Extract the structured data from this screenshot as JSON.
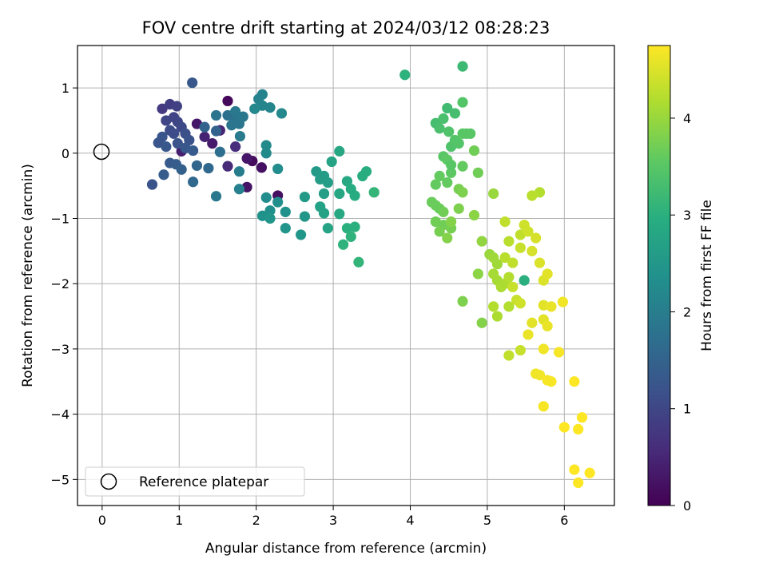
{
  "chart_data": {
    "type": "scatter",
    "title": "FOV centre drift starting at 2024/03/12 08:28:23",
    "xlabel": "Angular distance from reference (arcmin)",
    "ylabel": "Rotation from reference (arcmin)",
    "xlim": [
      -0.32,
      6.65
    ],
    "ylim": [
      -5.4,
      1.65
    ],
    "xticks": [
      0,
      1,
      2,
      3,
      4,
      5,
      6
    ],
    "yticks": [
      1,
      0,
      -1,
      -2,
      -3,
      -4,
      -5
    ],
    "grid": true,
    "colormap": "viridis",
    "colorbar": {
      "label": "Hours from first FF file",
      "range": [
        0,
        4.75
      ],
      "ticks": [
        0,
        1,
        2,
        3,
        4
      ]
    },
    "legend": {
      "placement": "lower-left",
      "entries": [
        {
          "label": "Reference platepar",
          "marker": "open-circle"
        }
      ]
    },
    "reference_point": {
      "x": 0,
      "y": 0
    },
    "points": [
      [
        1.63,
        0.8,
        0.1
      ],
      [
        1.95,
        -0.12,
        0.15
      ],
      [
        2.07,
        -0.22,
        0.2
      ],
      [
        1.88,
        -0.08,
        0.3
      ],
      [
        1.88,
        -0.52,
        0.25
      ],
      [
        2.28,
        -0.65,
        0.2
      ],
      [
        1.23,
        0.45,
        0.3
      ],
      [
        1.43,
        0.15,
        0.35
      ],
      [
        1.03,
        0.03,
        0.4
      ],
      [
        1.33,
        0.25,
        0.45
      ],
      [
        1.53,
        0.35,
        0.5
      ],
      [
        1.63,
        -0.2,
        0.55
      ],
      [
        1.73,
        0.1,
        0.6
      ],
      [
        0.78,
        0.68,
        0.8
      ],
      [
        0.88,
        0.75,
        0.85
      ],
      [
        0.97,
        0.72,
        0.9
      ],
      [
        0.93,
        0.55,
        0.95
      ],
      [
        0.83,
        0.5,
        1.0
      ],
      [
        0.98,
        0.48,
        1.0
      ],
      [
        1.03,
        0.4,
        1.05
      ],
      [
        0.88,
        0.35,
        1.1
      ],
      [
        0.93,
        0.3,
        1.1
      ],
      [
        1.08,
        0.3,
        1.15
      ],
      [
        1.13,
        0.2,
        1.2
      ],
      [
        0.98,
        0.15,
        1.2
      ],
      [
        0.78,
        0.25,
        1.25
      ],
      [
        0.73,
        0.16,
        1.25
      ],
      [
        0.83,
        0.1,
        1.3
      ],
      [
        1.08,
        0.08,
        1.3
      ],
      [
        1.18,
        0.04,
        1.35
      ],
      [
        0.88,
        -0.15,
        1.35
      ],
      [
        0.96,
        -0.17,
        1.4
      ],
      [
        0.8,
        -0.33,
        1.4
      ],
      [
        1.03,
        -0.25,
        1.45
      ],
      [
        0.65,
        -0.48,
        1.2
      ],
      [
        1.17,
        1.08,
        1.3
      ],
      [
        1.33,
        0.4,
        1.5
      ],
      [
        1.48,
        0.34,
        1.5
      ],
      [
        1.23,
        -0.19,
        1.55
      ],
      [
        1.38,
        -0.23,
        1.6
      ],
      [
        1.18,
        -0.44,
        1.6
      ],
      [
        1.53,
        0.02,
        1.7
      ],
      [
        1.63,
        0.58,
        1.75
      ],
      [
        1.48,
        0.58,
        1.8
      ],
      [
        1.73,
        0.52,
        1.8
      ],
      [
        1.78,
        0.45,
        1.85
      ],
      [
        1.68,
        0.43,
        1.85
      ],
      [
        1.83,
        0.56,
        1.9
      ],
      [
        1.73,
        0.64,
        1.9
      ],
      [
        1.79,
        0.26,
        1.95
      ],
      [
        1.48,
        -0.66,
        1.9
      ],
      [
        1.78,
        -0.28,
        2.0
      ],
      [
        1.78,
        -0.55,
        2.05
      ],
      [
        2.08,
        0.9,
        2.1
      ],
      [
        2.03,
        0.83,
        2.1
      ],
      [
        2.08,
        0.73,
        2.15
      ],
      [
        2.18,
        0.7,
        2.15
      ],
      [
        1.98,
        0.68,
        2.2
      ],
      [
        2.33,
        0.61,
        2.2
      ],
      [
        2.13,
        0.12,
        2.25
      ],
      [
        2.13,
        0.0,
        2.25
      ],
      [
        2.28,
        -0.24,
        2.3
      ],
      [
        2.13,
        -0.68,
        2.3
      ],
      [
        2.28,
        -0.75,
        2.35
      ],
      [
        2.18,
        -0.88,
        2.35
      ],
      [
        2.38,
        -0.9,
        2.4
      ],
      [
        2.08,
        -0.96,
        2.4
      ],
      [
        2.18,
        -1.0,
        2.45
      ],
      [
        2.38,
        -1.15,
        2.45
      ],
      [
        2.58,
        -1.25,
        2.5
      ],
      [
        2.63,
        -0.97,
        2.5
      ],
      [
        2.63,
        -0.67,
        2.55
      ],
      [
        2.78,
        -0.28,
        2.55
      ],
      [
        2.83,
        -0.4,
        2.6
      ],
      [
        2.88,
        -0.35,
        2.6
      ],
      [
        2.93,
        -0.45,
        2.65
      ],
      [
        2.88,
        -0.62,
        2.65
      ],
      [
        2.83,
        -0.82,
        2.7
      ],
      [
        2.88,
        -0.92,
        2.7
      ],
      [
        2.93,
        -1.15,
        2.75
      ],
      [
        2.98,
        -0.13,
        2.75
      ],
      [
        3.08,
        0.03,
        2.8
      ],
      [
        3.08,
        -0.62,
        2.8
      ],
      [
        3.08,
        -0.93,
        2.85
      ],
      [
        3.18,
        -0.43,
        2.85
      ],
      [
        3.23,
        -0.55,
        2.9
      ],
      [
        3.28,
        -0.65,
        2.9
      ],
      [
        3.38,
        -0.35,
        2.95
      ],
      [
        3.43,
        -0.28,
        2.95
      ],
      [
        3.18,
        -1.15,
        3.0
      ],
      [
        3.28,
        -1.13,
        3.0
      ],
      [
        3.13,
        -1.4,
        3.05
      ],
      [
        3.23,
        -1.28,
        3.05
      ],
      [
        3.33,
        -1.67,
        3.1
      ],
      [
        3.53,
        -0.6,
        3.1
      ],
      [
        3.93,
        1.2,
        3.05
      ],
      [
        4.68,
        1.33,
        3.2
      ],
      [
        4.48,
        0.69,
        3.25
      ],
      [
        4.58,
        0.61,
        3.3
      ],
      [
        4.33,
        0.46,
        3.3
      ],
      [
        4.43,
        0.53,
        3.35
      ],
      [
        4.38,
        0.38,
        3.35
      ],
      [
        4.5,
        0.33,
        3.4
      ],
      [
        4.53,
        0.1,
        3.4
      ],
      [
        4.58,
        0.2,
        3.45
      ],
      [
        4.63,
        0.15,
        3.45
      ],
      [
        4.68,
        0.3,
        3.5
      ],
      [
        4.73,
        0.3,
        3.5
      ],
      [
        4.43,
        -0.05,
        3.5
      ],
      [
        4.48,
        -0.1,
        3.55
      ],
      [
        4.53,
        -0.3,
        3.55
      ],
      [
        4.38,
        -0.35,
        3.6
      ],
      [
        4.48,
        -0.45,
        3.6
      ],
      [
        4.33,
        -0.48,
        3.6
      ],
      [
        4.28,
        -0.75,
        3.65
      ],
      [
        4.33,
        -0.8,
        3.65
      ],
      [
        4.38,
        -0.85,
        3.65
      ],
      [
        4.43,
        -0.9,
        3.7
      ],
      [
        4.33,
        -1.05,
        3.7
      ],
      [
        4.43,
        -1.1,
        3.7
      ],
      [
        4.38,
        -1.2,
        3.75
      ],
      [
        4.53,
        -1.15,
        3.75
      ],
      [
        4.63,
        -0.55,
        3.75
      ],
      [
        4.68,
        -0.6,
        3.8
      ],
      [
        4.63,
        -0.85,
        3.8
      ],
      [
        4.53,
        -1.05,
        3.85
      ],
      [
        4.48,
        -1.3,
        3.85
      ],
      [
        4.68,
        -0.2,
        3.6
      ],
      [
        4.83,
        0.04,
        3.7
      ],
      [
        4.88,
        -0.3,
        3.7
      ],
      [
        4.68,
        0.78,
        3.45
      ],
      [
        4.53,
        -0.18,
        3.5
      ],
      [
        4.83,
        -0.95,
        3.9
      ],
      [
        4.93,
        -1.35,
        3.95
      ],
      [
        4.88,
        -1.85,
        3.9
      ],
      [
        4.68,
        -2.27,
        3.8
      ],
      [
        4.93,
        -2.6,
        3.85
      ],
      [
        5.08,
        -0.62,
        4.0
      ],
      [
        5.03,
        -1.55,
        4.0
      ],
      [
        5.08,
        -1.6,
        4.05
      ],
      [
        5.13,
        -1.7,
        4.05
      ],
      [
        5.08,
        -1.85,
        4.1
      ],
      [
        5.13,
        -1.95,
        4.1
      ],
      [
        5.18,
        -2.05,
        4.15
      ],
      [
        5.23,
        -2.0,
        4.15
      ],
      [
        5.28,
        -1.9,
        4.2
      ],
      [
        5.13,
        -2.5,
        4.15
      ],
      [
        5.28,
        -2.35,
        4.2
      ],
      [
        5.23,
        -1.6,
        4.25
      ],
      [
        5.28,
        -1.35,
        4.25
      ],
      [
        5.23,
        -1.05,
        4.3
      ],
      [
        5.33,
        -1.68,
        4.3
      ],
      [
        5.43,
        -1.25,
        4.3
      ],
      [
        5.33,
        -2.05,
        4.35
      ],
      [
        5.38,
        -2.25,
        4.35
      ],
      [
        5.43,
        -2.3,
        4.4
      ],
      [
        5.43,
        -1.45,
        4.35
      ],
      [
        5.48,
        -1.1,
        4.4
      ],
      [
        5.53,
        -1.2,
        4.4
      ],
      [
        5.58,
        -1.5,
        4.45
      ],
      [
        5.63,
        -1.3,
        4.45
      ],
      [
        5.68,
        -0.6,
        4.2
      ],
      [
        5.58,
        -0.65,
        4.25
      ],
      [
        5.28,
        -3.1,
        4.3
      ],
      [
        5.43,
        -3.02,
        4.35
      ],
      [
        5.68,
        -1.68,
        4.5
      ],
      [
        5.73,
        -1.95,
        4.5
      ],
      [
        5.78,
        -1.85,
        4.55
      ],
      [
        5.73,
        -2.33,
        4.55
      ],
      [
        5.83,
        -2.35,
        4.6
      ],
      [
        5.73,
        -2.55,
        4.55
      ],
      [
        5.78,
        -2.65,
        4.6
      ],
      [
        5.58,
        -2.6,
        4.55
      ],
      [
        5.53,
        -2.78,
        4.6
      ],
      [
        5.63,
        -3.38,
        4.65
      ],
      [
        5.68,
        -3.4,
        4.65
      ],
      [
        5.73,
        -3.0,
        4.65
      ],
      [
        5.83,
        -3.5,
        4.7
      ],
      [
        5.73,
        -3.88,
        4.7
      ],
      [
        5.93,
        -3.05,
        4.7
      ],
      [
        5.98,
        -2.28,
        4.65
      ],
      [
        6.0,
        -4.2,
        4.75
      ],
      [
        6.13,
        -3.5,
        4.75
      ],
      [
        6.18,
        -4.23,
        4.75
      ],
      [
        6.23,
        -4.05,
        4.75
      ],
      [
        6.13,
        -4.85,
        4.75
      ],
      [
        6.18,
        -5.05,
        4.75
      ],
      [
        6.33,
        -4.9,
        4.75
      ],
      [
        4.78,
        0.3,
        3.5
      ],
      [
        5.08,
        -2.35,
        4.2
      ],
      [
        5.48,
        -1.95,
        3.0
      ],
      [
        5.78,
        -3.48,
        4.7
      ]
    ]
  }
}
